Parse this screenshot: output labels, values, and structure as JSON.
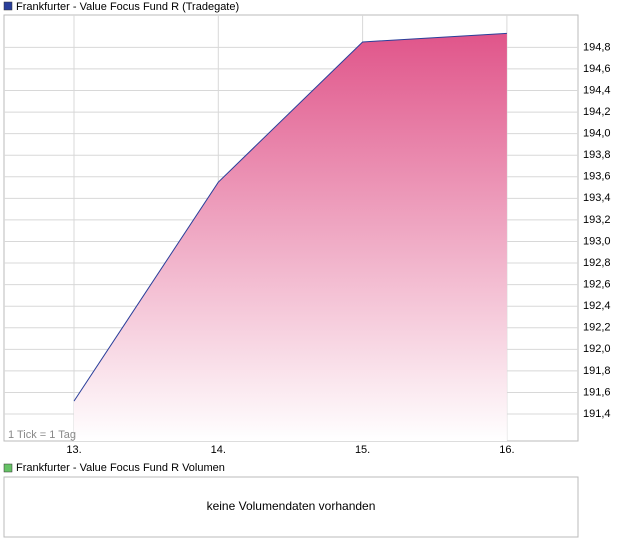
{
  "chart_data": {
    "type": "area",
    "categories": [
      "13.",
      "14.",
      "15.",
      "16."
    ],
    "series": [
      {
        "name": "Frankfurter - Value Focus Fund R (Tradegate)",
        "color": "#e0558a",
        "line_color": "#2a3f9a",
        "values": [
          191.52,
          193.55,
          194.85,
          194.93
        ]
      }
    ],
    "ylim": [
      191.15,
      195.1
    ],
    "yticks": [
      {
        "value": 191.4,
        "label": "191,4"
      },
      {
        "value": 191.6,
        "label": "191,6"
      },
      {
        "value": 191.8,
        "label": "191,8"
      },
      {
        "value": 192.0,
        "label": "192,0"
      },
      {
        "value": 192.2,
        "label": "192,2"
      },
      {
        "value": 192.4,
        "label": "192,4"
      },
      {
        "value": 192.6,
        "label": "192,6"
      },
      {
        "value": 192.8,
        "label": "192,8"
      },
      {
        "value": 193.0,
        "label": "193,0"
      },
      {
        "value": 193.2,
        "label": "193,2"
      },
      {
        "value": 193.4,
        "label": "193,4"
      },
      {
        "value": 193.6,
        "label": "193,6"
      },
      {
        "value": 193.8,
        "label": "193,8"
      },
      {
        "value": 194.0,
        "label": "194,0"
      },
      {
        "value": 194.2,
        "label": "194,2"
      },
      {
        "value": 194.4,
        "label": "194,4"
      },
      {
        "value": 194.6,
        "label": "194,6"
      },
      {
        "value": 194.8,
        "label": "194,8"
      }
    ],
    "grid": true,
    "annotation": "1 Tick = 1 Tag"
  },
  "volume_panel": {
    "title": "Frankfurter - Value Focus Fund R Volumen",
    "color": "#66c266",
    "message": "keine Volumendaten vorhanden"
  }
}
